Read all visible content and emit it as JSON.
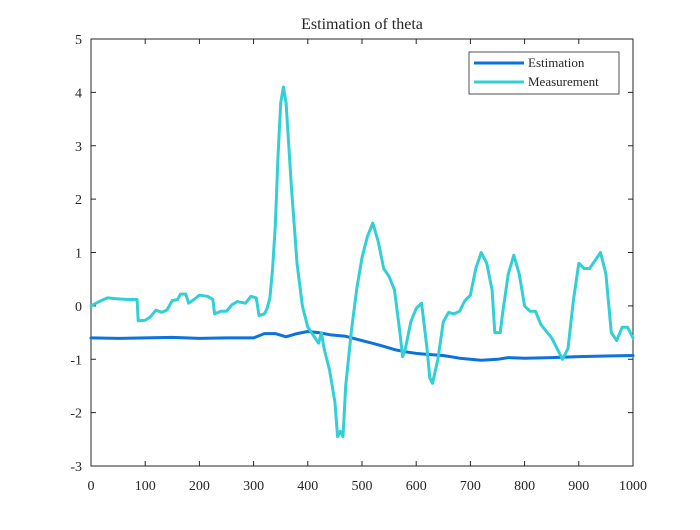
{
  "chart_data": {
    "type": "line",
    "title": "Estimation of theta",
    "xlabel": "",
    "ylabel": "",
    "xlim": [
      0,
      1000
    ],
    "ylim": [
      -3,
      5
    ],
    "xticks": [
      0,
      100,
      200,
      300,
      400,
      500,
      600,
      700,
      800,
      900,
      1000
    ],
    "yticks": [
      -3,
      -2,
      -1,
      0,
      1,
      2,
      3,
      4,
      5
    ],
    "grid": false,
    "legend_position": "top-right",
    "series": [
      {
        "name": "Estimation",
        "color": "#0c72de",
        "points": [
          [
            0,
            -0.6
          ],
          [
            50,
            -0.61
          ],
          [
            100,
            -0.6
          ],
          [
            150,
            -0.59
          ],
          [
            200,
            -0.61
          ],
          [
            250,
            -0.6
          ],
          [
            300,
            -0.6
          ],
          [
            320,
            -0.52
          ],
          [
            340,
            -0.52
          ],
          [
            360,
            -0.58
          ],
          [
            380,
            -0.52
          ],
          [
            400,
            -0.48
          ],
          [
            420,
            -0.5
          ],
          [
            440,
            -0.54
          ],
          [
            470,
            -0.57
          ],
          [
            500,
            -0.65
          ],
          [
            530,
            -0.73
          ],
          [
            560,
            -0.82
          ],
          [
            580,
            -0.86
          ],
          [
            600,
            -0.89
          ],
          [
            620,
            -0.91
          ],
          [
            650,
            -0.93
          ],
          [
            680,
            -0.98
          ],
          [
            700,
            -1.0
          ],
          [
            720,
            -1.02
          ],
          [
            750,
            -1.0
          ],
          [
            770,
            -0.97
          ],
          [
            800,
            -0.98
          ],
          [
            850,
            -0.97
          ],
          [
            900,
            -0.95
          ],
          [
            950,
            -0.94
          ],
          [
            1000,
            -0.93
          ]
        ]
      },
      {
        "name": "Measurement",
        "color": "#32cfd4",
        "points": [
          [
            0,
            0.0
          ],
          [
            15,
            0.08
          ],
          [
            30,
            0.15
          ],
          [
            50,
            0.13
          ],
          [
            70,
            0.12
          ],
          [
            85,
            0.12
          ],
          [
            87,
            -0.28
          ],
          [
            100,
            -0.27
          ],
          [
            110,
            -0.2
          ],
          [
            120,
            -0.08
          ],
          [
            130,
            -0.12
          ],
          [
            140,
            -0.08
          ],
          [
            150,
            0.1
          ],
          [
            160,
            0.12
          ],
          [
            165,
            0.22
          ],
          [
            175,
            0.22
          ],
          [
            180,
            0.05
          ],
          [
            190,
            0.12
          ],
          [
            200,
            0.2
          ],
          [
            215,
            0.18
          ],
          [
            225,
            0.12
          ],
          [
            228,
            -0.15
          ],
          [
            240,
            -0.1
          ],
          [
            250,
            -0.1
          ],
          [
            260,
            0.02
          ],
          [
            270,
            0.08
          ],
          [
            285,
            0.05
          ],
          [
            295,
            0.18
          ],
          [
            305,
            0.15
          ],
          [
            310,
            -0.18
          ],
          [
            320,
            -0.15
          ],
          [
            325,
            -0.05
          ],
          [
            330,
            0.15
          ],
          [
            335,
            0.7
          ],
          [
            340,
            1.5
          ],
          [
            345,
            2.8
          ],
          [
            350,
            3.8
          ],
          [
            355,
            4.1
          ],
          [
            360,
            3.8
          ],
          [
            365,
            3.0
          ],
          [
            370,
            2.2
          ],
          [
            375,
            1.5
          ],
          [
            380,
            0.8
          ],
          [
            390,
            0.0
          ],
          [
            400,
            -0.4
          ],
          [
            410,
            -0.55
          ],
          [
            420,
            -0.7
          ],
          [
            425,
            -0.5
          ],
          [
            430,
            -0.8
          ],
          [
            440,
            -1.2
          ],
          [
            450,
            -1.8
          ],
          [
            455,
            -2.45
          ],
          [
            460,
            -2.35
          ],
          [
            465,
            -2.45
          ],
          [
            470,
            -1.5
          ],
          [
            480,
            -0.5
          ],
          [
            490,
            0.3
          ],
          [
            500,
            0.9
          ],
          [
            510,
            1.3
          ],
          [
            520,
            1.55
          ],
          [
            530,
            1.2
          ],
          [
            540,
            0.7
          ],
          [
            550,
            0.55
          ],
          [
            560,
            0.3
          ],
          [
            570,
            -0.5
          ],
          [
            575,
            -0.95
          ],
          [
            580,
            -0.8
          ],
          [
            590,
            -0.3
          ],
          [
            600,
            -0.05
          ],
          [
            610,
            0.05
          ],
          [
            620,
            -0.8
          ],
          [
            625,
            -1.35
          ],
          [
            630,
            -1.45
          ],
          [
            640,
            -1.0
          ],
          [
            650,
            -0.3
          ],
          [
            660,
            -0.12
          ],
          [
            670,
            -0.15
          ],
          [
            680,
            -0.1
          ],
          [
            690,
            0.1
          ],
          [
            700,
            0.2
          ],
          [
            710,
            0.7
          ],
          [
            720,
            1.0
          ],
          [
            730,
            0.8
          ],
          [
            740,
            0.3
          ],
          [
            745,
            -0.5
          ],
          [
            755,
            -0.5
          ],
          [
            760,
            -0.1
          ],
          [
            770,
            0.6
          ],
          [
            780,
            0.95
          ],
          [
            790,
            0.6
          ],
          [
            800,
            0.0
          ],
          [
            810,
            -0.1
          ],
          [
            820,
            -0.1
          ],
          [
            830,
            -0.35
          ],
          [
            850,
            -0.6
          ],
          [
            860,
            -0.8
          ],
          [
            870,
            -1.0
          ],
          [
            880,
            -0.8
          ],
          [
            890,
            0.1
          ],
          [
            900,
            0.8
          ],
          [
            910,
            0.7
          ],
          [
            920,
            0.7
          ],
          [
            930,
            0.85
          ],
          [
            940,
            1.0
          ],
          [
            950,
            0.6
          ],
          [
            960,
            -0.5
          ],
          [
            970,
            -0.65
          ],
          [
            980,
            -0.4
          ],
          [
            990,
            -0.4
          ],
          [
            1000,
            -0.6
          ]
        ]
      }
    ]
  }
}
